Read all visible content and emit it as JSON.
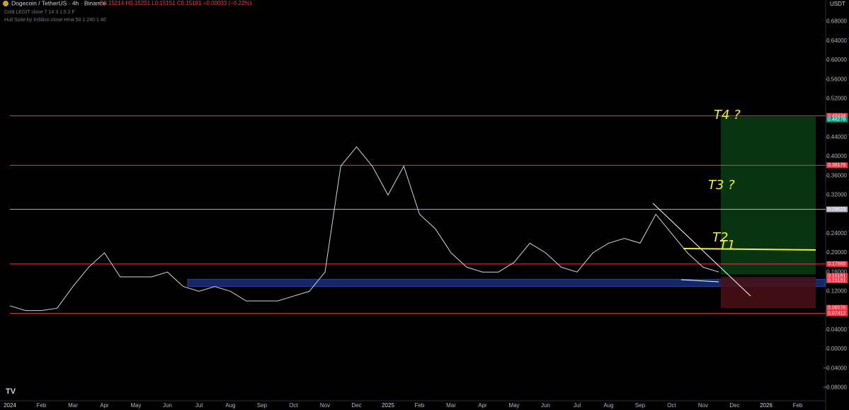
{
  "chart_data": {
    "type": "line",
    "title": "Dogecoin / TetherUS · 4h · Binance",
    "ohlc": "O0.15214 H0.15251 L0.15151 C0.15181 −0.00033 (−0.22%)",
    "indicators": [
      "Cold LEGIT close 7 14 3 1.5 2 F",
      "Hull Suite by InSilico close Hma 50 1 240 1 40"
    ],
    "currency": "USDT",
    "categories": [
      "2024",
      null,
      "Feb",
      null,
      "Mar",
      null,
      "Apr",
      null,
      "May",
      null,
      "Jun",
      null,
      "Jul",
      null,
      "Aug",
      null,
      "Sep",
      null,
      "Oct",
      null,
      "Nov",
      null,
      "Dec",
      null,
      "2025",
      null,
      "Feb",
      null,
      "Mar",
      null,
      "Apr",
      null,
      "May",
      null,
      "Jun",
      null,
      "Jul",
      null,
      "Aug",
      null,
      "Sep",
      null,
      "Oct",
      null,
      "Nov",
      null,
      "Dec",
      null,
      "2026",
      null,
      "Feb"
    ],
    "series": [
      {
        "name": "Dogecoin / TetherUS",
        "color": "#d1d4dc",
        "values": [
          0.09,
          0.08,
          0.08,
          0.085,
          0.13,
          0.17,
          0.2,
          0.15,
          0.15,
          0.15,
          0.16,
          0.13,
          0.12,
          0.13,
          0.12,
          0.1,
          0.1,
          0.1,
          0.11,
          0.12,
          0.16,
          0.38,
          0.42,
          0.38,
          0.32,
          0.38,
          0.28,
          0.25,
          0.2,
          0.17,
          0.16,
          0.16,
          0.18,
          0.22,
          0.2,
          0.17,
          0.16,
          0.2,
          0.22,
          0.23,
          0.22,
          0.28,
          0.24,
          0.2,
          0.17,
          0.16,
          null,
          null,
          null,
          null,
          null
        ]
      }
    ],
    "ylim": [
      -0.1,
      0.72
    ],
    "yticks": [
      {
        "value": 0.68,
        "label": "0.68000"
      },
      {
        "value": 0.64,
        "label": "0.64000"
      },
      {
        "value": 0.6,
        "label": "0.60000"
      },
      {
        "value": 0.56,
        "label": "0.56000"
      },
      {
        "value": 0.52,
        "label": "0.52000"
      },
      {
        "value": 0.44,
        "label": "0.44000"
      },
      {
        "value": 0.4,
        "label": "0.40000"
      },
      {
        "value": 0.36,
        "label": "0.36000"
      },
      {
        "value": 0.32,
        "label": "0.32000"
      },
      {
        "value": 0.24,
        "label": "0.24000"
      },
      {
        "value": 0.2,
        "label": "0.20000"
      },
      {
        "value": 0.16,
        "label": "0.16000"
      },
      {
        "value": 0.12,
        "label": "0.12000"
      },
      {
        "value": 0.04,
        "label": "0.04000"
      },
      {
        "value": 0,
        "label": "0.00000"
      },
      {
        "value": -0.04,
        "label": "−0.04000"
      },
      {
        "value": -0.08,
        "label": "−0.08000"
      }
    ],
    "levels": [
      {
        "value": 0.48434,
        "label": "0.48434",
        "color": "#f23645"
      },
      {
        "value": 0.38179,
        "label": "0.38179",
        "color": "#f23645"
      },
      {
        "value": 0.29023,
        "label": "0.29023",
        "color": "#b2b5be"
      },
      {
        "value": 0.17668,
        "label": "0.17668",
        "color": "#f23645"
      },
      {
        "value": 0.07412,
        "label": "0.07412",
        "color": "#f23645"
      }
    ],
    "price_labels": [
      {
        "value": 0.48278,
        "label": "0.48278",
        "color": "#089981"
      },
      {
        "value": 0.15181,
        "label": "0.15181",
        "color": "#f23645"
      },
      {
        "value": 0.15151,
        "label": "0.15151",
        "color": "#f23645"
      },
      {
        "value": 0.08576,
        "label": "0.08576",
        "color": "#f23645"
      }
    ],
    "zones": [
      {
        "from": 0.13,
        "to": 0.145,
        "color": "#1e3a8a"
      },
      {
        "from": 0.155,
        "to": 0.48278,
        "color": "#0b3d14"
      },
      {
        "from": 0.085,
        "to": 0.15,
        "color": "#4a0f16"
      }
    ],
    "annotations": [
      "T1",
      "T2",
      "T3 ?",
      "T4 ?"
    ]
  }
}
